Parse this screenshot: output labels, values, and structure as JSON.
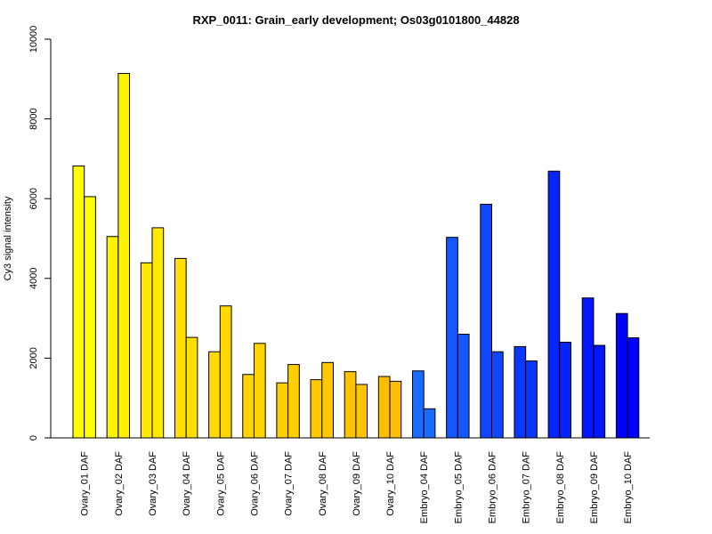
{
  "chart_data": {
    "type": "bar",
    "title": "RXP_0011: Grain_early development; Os03g0101800_44828",
    "xlabel": "",
    "ylabel": "Cy3 signal intensity",
    "ylim": [
      0,
      10000
    ],
    "yticks": [
      0,
      2000,
      4000,
      6000,
      8000,
      10000
    ],
    "grid": false,
    "categories": [
      "Ovary_01 DAF",
      "Ovary_02 DAF",
      "Ovary_03 DAF",
      "Ovary_04 DAF",
      "Ovary_05 DAF",
      "Ovary_06 DAF",
      "Ovary_07 DAF",
      "Ovary_08 DAF",
      "Ovary_09 DAF",
      "Ovary_10 DAF",
      "Embryo_04 DAF",
      "Embryo_05 DAF",
      "Embryo_06 DAF",
      "Embryo_07 DAF",
      "Embryo_08 DAF",
      "Embryo_09 DAF",
      "Embryo_10 DAF"
    ],
    "series": [
      {
        "values": [
          6820,
          5050,
          4390,
          4500,
          2160,
          1590,
          1380,
          1460,
          1660,
          1540,
          1680,
          5030,
          5860,
          2290,
          6690,
          3510,
          3120
        ]
      },
      {
        "values": [
          6050,
          9140,
          5270,
          2520,
          3310,
          2370,
          1840,
          1890,
          1340,
          1420,
          730,
          2600,
          2160,
          1930,
          2400,
          2320,
          2510
        ]
      }
    ],
    "colors": [
      "#FFFF00",
      "#FFF200",
      "#FFE900",
      "#FFE000",
      "#FFD900",
      "#FFD400",
      "#FFCE00",
      "#FFC800",
      "#FFC300",
      "#FFBF00",
      "#1A6CFF",
      "#1457FF",
      "#0F48FF",
      "#0A38FF",
      "#0624FF",
      "#0416FF",
      "#0000FF"
    ]
  }
}
